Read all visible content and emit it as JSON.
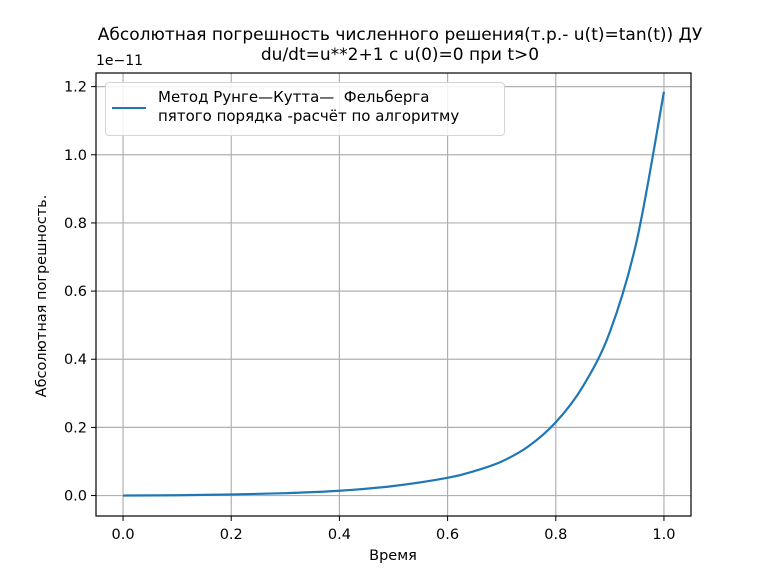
{
  "chart": {
    "title_line1": "Абсолютная погрешность численного решения(т.р.- u(t)=tan(t)) ДУ",
    "title_line2": "du/dt=u**2+1 с  u(0)=0 при t>0",
    "y_offset_label": "1e−11",
    "xlabel": "Время",
    "ylabel": "Абсолютная погрешность.",
    "legend_line1": "Метод Рунге—Кутта—  Фельберга",
    "legend_line2": "пятого порядка -расчёт по алгоритму",
    "line_color": "#1f77b4"
  },
  "chart_data": {
    "type": "line",
    "title": "Абсолютная погрешность численного решения(т.р.- u(t)=tan(t)) ДУ du/dt=u**2+1 с  u(0)=0 при t>0",
    "xlabel": "Время",
    "ylabel": "Абсолютная погрешность.",
    "y_scale_factor": "1e-11",
    "xlim": [
      -0.05,
      1.05
    ],
    "ylim": [
      -0.06,
      1.24
    ],
    "x_ticks": [
      "0.0",
      "0.2",
      "0.4",
      "0.6",
      "0.8",
      "1.0"
    ],
    "y_ticks": [
      "0.0",
      "0.2",
      "0.4",
      "0.6",
      "0.8",
      "1.0",
      "1.2"
    ],
    "grid": true,
    "legend_position": "upper left",
    "series": [
      {
        "name": "Метод Рунге—Кутта—  Фельберга пятого порядка -расчёт по алгоритму",
        "color": "#1f77b4",
        "x": [
          0.0,
          0.1,
          0.2,
          0.3,
          0.4,
          0.5,
          0.6,
          0.65,
          0.7,
          0.75,
          0.8,
          0.85,
          0.9,
          0.95,
          1.0
        ],
        "y": [
          0.0,
          0.001,
          0.003,
          0.007,
          0.014,
          0.028,
          0.052,
          0.072,
          0.1,
          0.145,
          0.215,
          0.32,
          0.48,
          0.75,
          1.185
        ]
      }
    ]
  }
}
